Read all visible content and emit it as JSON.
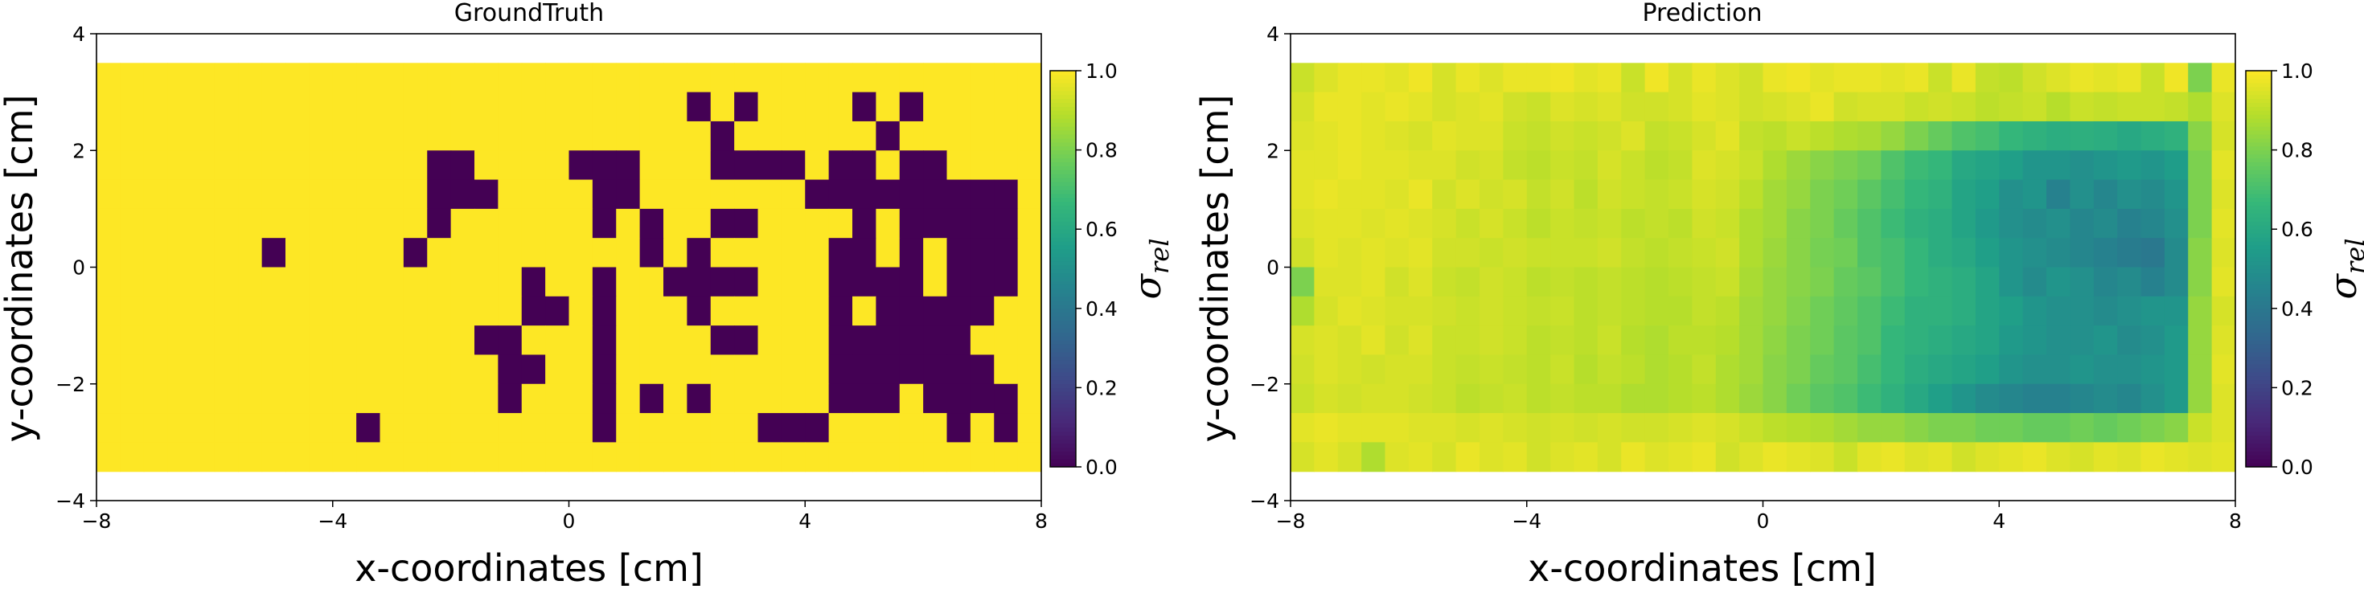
{
  "chart_data": [
    {
      "type": "heatmap",
      "title": "GroundTruth",
      "xlabel": "x-coordinates [cm]",
      "ylabel": "y-coordinates [cm]",
      "xlim": [
        -8,
        8
      ],
      "ylim": [
        -4,
        4
      ],
      "xticks": [
        -8,
        -4,
        0,
        4,
        8
      ],
      "yticks": [
        -4,
        -2,
        0,
        2,
        4
      ],
      "extent": [
        -8,
        8,
        -3.5,
        3.5
      ],
      "colormap": "viridis",
      "colorbar": {
        "label": "σ_rel",
        "vmin": 0.0,
        "vmax": 1.0,
        "ticks": [
          "0.0",
          "0.2",
          "0.4",
          "0.6",
          "0.8",
          "1.0"
        ]
      },
      "z": [
        [
          1,
          1,
          1,
          1,
          1,
          1,
          1,
          1,
          1,
          1,
          1,
          1,
          1,
          1,
          1,
          1,
          1,
          1,
          1,
          1,
          1,
          1,
          1,
          1,
          1,
          1,
          1,
          1,
          1,
          1,
          1,
          1,
          1,
          1,
          1,
          1,
          1,
          1,
          1,
          1
        ],
        [
          1,
          1,
          1,
          1,
          1,
          1,
          1,
          1,
          1,
          1,
          1,
          1,
          1,
          1,
          1,
          1,
          1,
          1,
          1,
          1,
          1,
          1,
          1,
          1,
          1,
          1,
          1,
          1,
          1,
          1,
          1,
          1,
          1,
          1,
          1,
          1,
          1,
          1,
          1,
          1
        ],
        [
          1,
          1,
          1,
          1,
          1,
          1,
          1,
          1,
          1,
          1,
          1,
          1,
          1,
          1,
          1,
          1,
          1,
          1,
          1,
          1,
          1,
          1,
          1,
          1,
          1,
          1,
          1,
          1,
          1,
          1,
          1,
          1,
          1,
          1,
          1,
          1,
          1,
          1,
          1,
          1
        ],
        [
          1,
          1,
          1,
          1,
          1,
          1,
          1,
          1,
          1,
          1,
          1,
          1,
          1,
          1,
          1,
          1,
          1,
          1,
          1,
          1,
          1,
          1,
          1,
          1,
          1,
          1,
          1,
          1,
          1,
          1,
          1,
          1,
          1,
          1,
          1,
          1,
          1,
          1,
          1,
          1
        ],
        [
          1,
          1,
          1,
          1,
          1,
          1,
          1,
          1,
          1,
          1,
          1,
          1,
          1,
          1,
          1,
          1,
          1,
          1,
          1,
          1,
          1,
          1,
          1,
          1,
          1,
          1,
          1,
          1,
          1,
          1,
          1,
          1,
          1,
          1,
          1,
          1,
          1,
          1,
          1,
          1
        ],
        [
          1,
          1,
          1,
          1,
          1,
          1,
          1,
          1,
          1,
          1,
          1,
          1,
          1,
          1,
          1,
          1,
          1,
          1,
          1,
          1,
          1,
          1,
          1,
          1,
          1,
          1,
          1,
          1,
          1,
          1,
          1,
          1,
          1,
          1,
          1,
          1,
          1,
          1,
          1,
          1
        ],
        [
          1,
          1,
          1,
          1,
          1,
          1,
          1,
          1,
          1,
          1,
          1,
          1,
          1,
          1,
          1,
          1,
          1,
          1,
          1,
          1,
          1,
          1,
          1,
          1,
          1,
          1,
          1,
          1,
          1,
          1,
          1,
          1,
          1,
          1,
          1,
          1,
          1,
          1,
          1,
          1
        ],
        [
          1,
          1,
          1,
          1,
          1,
          1,
          1,
          1,
          1,
          1,
          1,
          1,
          1,
          1,
          1,
          1,
          1,
          1,
          1,
          1,
          1,
          1,
          1,
          1,
          1,
          1,
          1,
          1,
          1,
          1,
          1,
          1,
          1,
          1,
          1,
          1,
          1,
          1,
          1,
          1
        ],
        [
          1,
          1,
          1,
          1,
          1,
          1,
          1,
          1,
          1,
          1,
          1,
          1,
          1,
          1,
          1,
          1,
          1,
          1,
          1,
          1,
          1,
          1,
          1,
          1,
          1,
          1,
          1,
          1,
          1,
          1,
          1,
          1,
          1,
          1,
          1,
          1,
          1,
          1,
          1,
          1
        ],
        [
          1,
          1,
          1,
          1,
          1,
          1,
          1,
          1,
          1,
          1,
          1,
          1,
          1,
          1,
          1,
          1,
          1,
          1,
          1,
          1,
          1,
          1,
          1,
          1,
          1,
          1,
          1,
          1,
          1,
          1,
          1,
          1,
          1,
          1,
          1,
          1,
          1,
          1,
          1,
          1
        ],
        [
          1,
          1,
          1,
          1,
          1,
          1,
          1,
          1,
          1,
          1,
          1,
          1,
          1,
          1,
          1,
          1,
          1,
          1,
          1,
          1,
          1,
          1,
          1,
          1,
          1,
          1,
          1,
          1,
          1,
          1,
          1,
          1,
          1,
          1,
          1,
          1,
          1,
          1,
          1,
          1
        ],
        [
          1,
          1,
          1,
          1,
          1,
          1,
          1,
          1,
          1,
          1,
          1,
          1,
          1,
          1,
          1,
          1,
          1,
          1,
          1,
          1,
          1,
          1,
          1,
          1,
          1,
          1,
          1,
          1,
          1,
          1,
          1,
          1,
          1,
          1,
          1,
          1,
          1,
          1,
          1,
          1
        ],
        [
          1,
          1,
          1,
          1,
          1,
          1,
          1,
          1,
          1,
          1,
          1,
          1,
          1,
          1,
          1,
          1,
          1,
          1,
          1,
          1,
          1,
          1,
          1,
          1,
          1,
          1,
          1,
          1,
          1,
          1,
          1,
          1,
          1,
          1,
          1,
          1,
          1,
          1,
          1,
          1
        ],
        [
          1,
          1,
          1,
          1,
          1,
          1,
          1,
          1,
          1,
          1,
          1,
          1,
          1,
          1,
          1,
          1,
          1,
          1,
          1,
          1,
          1,
          1,
          1,
          1,
          1,
          1,
          1,
          1,
          1,
          1,
          1,
          1,
          1,
          1,
          1,
          1,
          1,
          1,
          1,
          1
        ]
      ]
    },
    {
      "type": "heatmap",
      "title": "Prediction",
      "xlabel": "x-coordinates [cm]",
      "ylabel": "y-coordinates [cm]",
      "xlim": [
        -8,
        8
      ],
      "ylim": [
        -4,
        4
      ],
      "xticks": [
        -8,
        -4,
        0,
        4,
        8
      ],
      "yticks": [
        -4,
        -2,
        0,
        2,
        4
      ],
      "extent": [
        -8,
        8,
        -3.5,
        3.5
      ],
      "colormap": "viridis",
      "colorbar": {
        "label": "σ_rel",
        "vmin": 0.0,
        "vmax": 1.0,
        "ticks": [
          "0.0",
          "0.2",
          "0.4",
          "0.6",
          "0.8",
          "1.0"
        ]
      },
      "z": [
        [
          0.92,
          0.95,
          0.97,
          0.97,
          0.96,
          0.98,
          0.94,
          0.97,
          0.95,
          0.97,
          0.97,
          0.98,
          0.96,
          0.97,
          0.92,
          0.98,
          0.94,
          0.97,
          0.95,
          0.93,
          0.97,
          0.98,
          0.96,
          0.97,
          0.97,
          0.96,
          0.97,
          0.92,
          0.97,
          0.91,
          0.9,
          0.93,
          0.95,
          0.97,
          0.96,
          0.97,
          0.92,
          0.98,
          0.8,
          0.97
        ],
        [
          0.94,
          0.97,
          0.97,
          0.96,
          0.97,
          0.96,
          0.94,
          0.95,
          0.96,
          0.93,
          0.92,
          0.95,
          0.94,
          0.95,
          0.93,
          0.93,
          0.94,
          0.96,
          0.95,
          0.93,
          0.94,
          0.95,
          0.97,
          0.93,
          0.94,
          0.94,
          0.92,
          0.93,
          0.92,
          0.9,
          0.91,
          0.92,
          0.89,
          0.92,
          0.91,
          0.92,
          0.92,
          0.91,
          0.88,
          0.95
        ],
        [
          0.95,
          0.96,
          0.97,
          0.96,
          0.95,
          0.94,
          0.96,
          0.95,
          0.95,
          0.92,
          0.91,
          0.93,
          0.92,
          0.93,
          0.95,
          0.91,
          0.92,
          0.94,
          0.96,
          0.91,
          0.9,
          0.92,
          0.9,
          0.88,
          0.87,
          0.84,
          0.8,
          0.76,
          0.72,
          0.7,
          0.66,
          0.64,
          0.62,
          0.63,
          0.62,
          0.6,
          0.62,
          0.64,
          0.82,
          0.94
        ],
        [
          0.96,
          0.96,
          0.97,
          0.96,
          0.96,
          0.95,
          0.95,
          0.93,
          0.94,
          0.91,
          0.9,
          0.92,
          0.91,
          0.94,
          0.92,
          0.9,
          0.91,
          0.95,
          0.94,
          0.92,
          0.88,
          0.85,
          0.82,
          0.8,
          0.78,
          0.72,
          0.68,
          0.66,
          0.6,
          0.58,
          0.56,
          0.52,
          0.52,
          0.5,
          0.52,
          0.54,
          0.52,
          0.55,
          0.8,
          0.96
        ],
        [
          0.96,
          0.97,
          0.96,
          0.96,
          0.95,
          0.97,
          0.93,
          0.95,
          0.93,
          0.94,
          0.91,
          0.93,
          0.9,
          0.93,
          0.92,
          0.91,
          0.92,
          0.94,
          0.93,
          0.9,
          0.86,
          0.84,
          0.8,
          0.78,
          0.74,
          0.7,
          0.66,
          0.64,
          0.58,
          0.56,
          0.5,
          0.52,
          0.44,
          0.5,
          0.46,
          0.5,
          0.48,
          0.52,
          0.8,
          0.95
        ],
        [
          0.95,
          0.96,
          0.96,
          0.95,
          0.96,
          0.95,
          0.94,
          0.92,
          0.94,
          0.92,
          0.9,
          0.92,
          0.91,
          0.92,
          0.9,
          0.91,
          0.9,
          0.93,
          0.92,
          0.88,
          0.86,
          0.82,
          0.8,
          0.76,
          0.72,
          0.68,
          0.64,
          0.62,
          0.58,
          0.54,
          0.5,
          0.48,
          0.5,
          0.46,
          0.48,
          0.44,
          0.46,
          0.5,
          0.8,
          0.96
        ],
        [
          0.93,
          0.96,
          0.95,
          0.96,
          0.95,
          0.96,
          0.93,
          0.93,
          0.92,
          0.93,
          0.92,
          0.92,
          0.92,
          0.93,
          0.91,
          0.9,
          0.91,
          0.92,
          0.93,
          0.88,
          0.85,
          0.82,
          0.79,
          0.78,
          0.72,
          0.7,
          0.66,
          0.62,
          0.6,
          0.56,
          0.52,
          0.5,
          0.48,
          0.46,
          0.44,
          0.42,
          0.4,
          0.48,
          0.82,
          0.95
        ],
        [
          0.8,
          0.95,
          0.95,
          0.96,
          0.93,
          0.95,
          0.92,
          0.91,
          0.93,
          0.92,
          0.9,
          0.91,
          0.9,
          0.91,
          0.9,
          0.89,
          0.9,
          0.91,
          0.92,
          0.87,
          0.84,
          0.82,
          0.8,
          0.76,
          0.74,
          0.7,
          0.66,
          0.64,
          0.62,
          0.58,
          0.52,
          0.48,
          0.52,
          0.5,
          0.46,
          0.48,
          0.44,
          0.48,
          0.82,
          0.96
        ],
        [
          0.88,
          0.94,
          0.96,
          0.95,
          0.94,
          0.94,
          0.93,
          0.92,
          0.93,
          0.92,
          0.91,
          0.92,
          0.9,
          0.91,
          0.9,
          0.89,
          0.89,
          0.91,
          0.9,
          0.86,
          0.84,
          0.81,
          0.78,
          0.75,
          0.72,
          0.68,
          0.64,
          0.64,
          0.62,
          0.58,
          0.56,
          0.52,
          0.5,
          0.5,
          0.48,
          0.5,
          0.52,
          0.52,
          0.84,
          0.94
        ],
        [
          0.94,
          0.95,
          0.94,
          0.96,
          0.93,
          0.95,
          0.92,
          0.92,
          0.93,
          0.92,
          0.9,
          0.91,
          0.9,
          0.92,
          0.89,
          0.88,
          0.9,
          0.9,
          0.89,
          0.86,
          0.83,
          0.8,
          0.78,
          0.74,
          0.72,
          0.66,
          0.64,
          0.62,
          0.6,
          0.58,
          0.54,
          0.52,
          0.5,
          0.5,
          0.52,
          0.48,
          0.5,
          0.54,
          0.84,
          0.95
        ],
        [
          0.93,
          0.95,
          0.94,
          0.93,
          0.94,
          0.94,
          0.92,
          0.91,
          0.92,
          0.91,
          0.9,
          0.92,
          0.89,
          0.91,
          0.9,
          0.88,
          0.89,
          0.91,
          0.88,
          0.86,
          0.82,
          0.8,
          0.76,
          0.74,
          0.7,
          0.66,
          0.62,
          0.6,
          0.58,
          0.56,
          0.52,
          0.5,
          0.5,
          0.52,
          0.5,
          0.5,
          0.52,
          0.54,
          0.84,
          0.96
        ],
        [
          0.92,
          0.94,
          0.93,
          0.94,
          0.94,
          0.93,
          0.92,
          0.9,
          0.91,
          0.92,
          0.9,
          0.91,
          0.9,
          0.9,
          0.88,
          0.88,
          0.89,
          0.9,
          0.88,
          0.85,
          0.82,
          0.78,
          0.74,
          0.72,
          0.68,
          0.64,
          0.6,
          0.56,
          0.52,
          0.48,
          0.46,
          0.44,
          0.44,
          0.46,
          0.48,
          0.46,
          0.5,
          0.54,
          0.84,
          0.95
        ],
        [
          0.96,
          0.97,
          0.96,
          0.96,
          0.96,
          0.95,
          0.95,
          0.94,
          0.95,
          0.94,
          0.93,
          0.94,
          0.93,
          0.94,
          0.93,
          0.93,
          0.94,
          0.95,
          0.94,
          0.92,
          0.9,
          0.89,
          0.88,
          0.86,
          0.84,
          0.84,
          0.82,
          0.8,
          0.8,
          0.78,
          0.78,
          0.76,
          0.76,
          0.78,
          0.76,
          0.78,
          0.8,
          0.82,
          0.92,
          0.95
        ],
        [
          0.94,
          0.96,
          0.94,
          0.88,
          0.95,
          0.96,
          0.94,
          0.97,
          0.95,
          0.96,
          0.93,
          0.95,
          0.96,
          0.94,
          0.97,
          0.95,
          0.96,
          0.97,
          0.93,
          0.95,
          0.97,
          0.96,
          0.95,
          0.92,
          0.96,
          0.97,
          0.95,
          0.96,
          0.93,
          0.95,
          0.96,
          0.97,
          0.95,
          0.94,
          0.96,
          0.95,
          0.97,
          0.96,
          0.95,
          0.96
        ]
      ]
    }
  ]
}
